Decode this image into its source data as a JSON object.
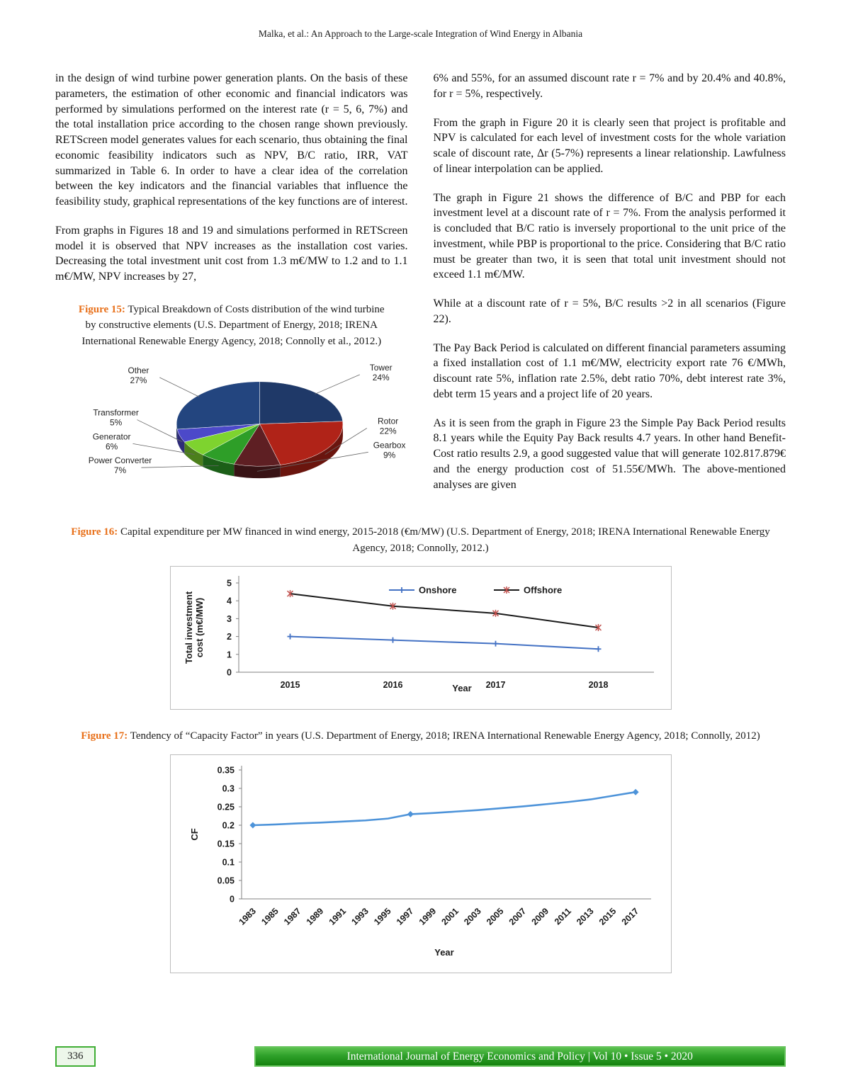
{
  "header": {
    "running_head": "Malka, et al.: An Approach to the Large-scale Integration of Wind Energy in Albania"
  },
  "body": {
    "left": {
      "p1": "in the design of wind turbine power generation plants. On the basis of these parameters, the estimation of other economic and financial indicators was performed by simulations performed on the interest rate (r = 5, 6, 7%) and the total installation price according to the chosen range shown previously. RETScreen model generates values for each scenario, thus obtaining the final economic feasibility indicators such as NPV, B/C ratio, IRR, VAT summarized in Table 6. In order to have a clear idea of the correlation between the key indicators and the financial variables that influence the feasibility study, graphical representations of the key functions are of interest.",
      "p2": "From graphs in Figures 18 and 19 and simulations performed in RETScreen model it is observed that NPV increases as the installation cost varies. Decreasing the total investment unit cost from 1.3 m€/MW to 1.2 and to 1.1 m€/MW, NPV increases by 27,"
    },
    "right": {
      "p1": "6% and 55%, for an assumed discount rate r = 7% and by 20.4% and 40.8%, for r = 5%, respectively.",
      "p2": "From the graph in Figure 20 it is clearly seen that project is profitable and NPV is calculated for each level of investment costs for the whole variation scale of discount rate, Δr (5-7%) represents a linear relationship. Lawfulness of linear interpolation can be applied.",
      "p3": "The graph in Figure 21 shows the difference of B/C and PBP for each investment level at a discount rate of r = 7%. From the analysis performed it is concluded that B/C ratio is inversely proportional to the unit price of the investment, while PBP is proportional to the price. Considering that B/C ratio must be greater than two, it is seen that total unit investment should not exceed 1.1 m€/MW.",
      "p4": "While at a discount rate of r = 5%, B/C results >2 in all scenarios (Figure 22).",
      "p5": "The Pay Back Period is calculated on different financial parameters assuming a fixed installation cost of 1.1 m€/MW, electricity export rate 76 €/MWh, discount rate 5%, inflation rate 2.5%, debt ratio 70%, debt interest rate 3%, debt term 15 years and a project life of 20 years.",
      "p6": "As it is seen from the graph in Figure 23 the Simple Pay Back Period results 8.1 years while the Equity Pay Back results 4.7 years. In other hand Benefit-Cost ratio results 2.9, a good suggested value that will generate 102.817.879€ and the energy production cost of 51.55€/MWh. The above-mentioned analyses are given"
    }
  },
  "figures": {
    "fig15": {
      "label": "Figure 15:",
      "caption": "Typical Breakdown of Costs distribution of the wind turbine by constructive elements (U.S. Department of Energy, 2018; IRENA International Renewable Energy Agency, 2018; Connolly et al., 2012.)"
    },
    "fig16": {
      "label": "Figure 16:",
      "caption": "Capital expenditure per MW financed in wind energy, 2015-2018 (€m/MW) (U.S. Department of Energy, 2018; IRENA International Renewable Energy Agency, 2018; Connolly, 2012.)"
    },
    "fig17": {
      "label": "Figure 17:",
      "caption": "Tendency of “Capacity Factor” in years (U.S. Department of Energy, 2018; IRENA International Renewable Energy Agency, 2018; Connolly, 2012)"
    }
  },
  "footer": {
    "page_number": "336",
    "journal_line": "International Journal of Energy Economics and Policy | Vol 10 • Issue 5 • 2020"
  },
  "colors": {
    "figure_label": "#E8701A",
    "footer_green": "#2FA12B"
  },
  "chart_data": [
    {
      "id": "fig15",
      "type": "pie",
      "title": "Typical Breakdown of Costs distribution of the wind turbine by constructive elements",
      "slices": [
        {
          "label": "Tower",
          "pct": 24,
          "color": "#1F3968"
        },
        {
          "label": "Rotor",
          "pct": 22,
          "color": "#B02318"
        },
        {
          "label": "Gearbox",
          "pct": 9,
          "color": "#5E1F23"
        },
        {
          "label": "Power Converter",
          "pct": 7,
          "color": "#2E9E28"
        },
        {
          "label": "Generator",
          "pct": 6,
          "color": "#7ED32F"
        },
        {
          "label": "Transformer",
          "pct": 5,
          "color": "#4C49C9"
        },
        {
          "label": "Other",
          "pct": 27,
          "color": "#23457F"
        }
      ]
    },
    {
      "id": "fig16",
      "type": "line",
      "categories": [
        "2015",
        "2016",
        "2017",
        "2018"
      ],
      "series": [
        {
          "name": "Onshore",
          "values": [
            2.0,
            1.8,
            1.6,
            1.3
          ],
          "color": "#4472C4",
          "marker": "plus",
          "marker_color": "#4472C4"
        },
        {
          "name": "Offshore",
          "values": [
            4.4,
            3.7,
            3.3,
            2.5
          ],
          "color": "#1A1A1A",
          "marker": "asterisk",
          "marker_color": "#C0504D"
        }
      ],
      "xlabel": "Year",
      "ylabel": "Total investment cost (m€/MW)",
      "ylim": [
        0,
        5
      ],
      "ytick_step": 1,
      "legend_position": "top",
      "grid": false
    },
    {
      "id": "fig17",
      "type": "line",
      "categories": [
        "1983",
        "1985",
        "1987",
        "1989",
        "1991",
        "1993",
        "1995",
        "1997",
        "1999",
        "2001",
        "2003",
        "2005",
        "2007",
        "2009",
        "2011",
        "2013",
        "2015",
        "2017"
      ],
      "series": [
        {
          "name": "CF",
          "values": [
            0.2,
            0.202,
            0.205,
            0.207,
            0.21,
            0.213,
            0.218,
            0.23,
            0.233,
            0.237,
            0.241,
            0.246,
            0.251,
            0.257,
            0.263,
            0.27,
            0.28,
            0.29
          ],
          "color": "#4D93D9",
          "marker_indices": [
            0,
            7,
            17
          ]
        }
      ],
      "xlabel": "Year",
      "ylabel": "CF",
      "ylim": [
        0,
        0.35
      ],
      "ytick_step": 0.05,
      "grid": false
    }
  ]
}
